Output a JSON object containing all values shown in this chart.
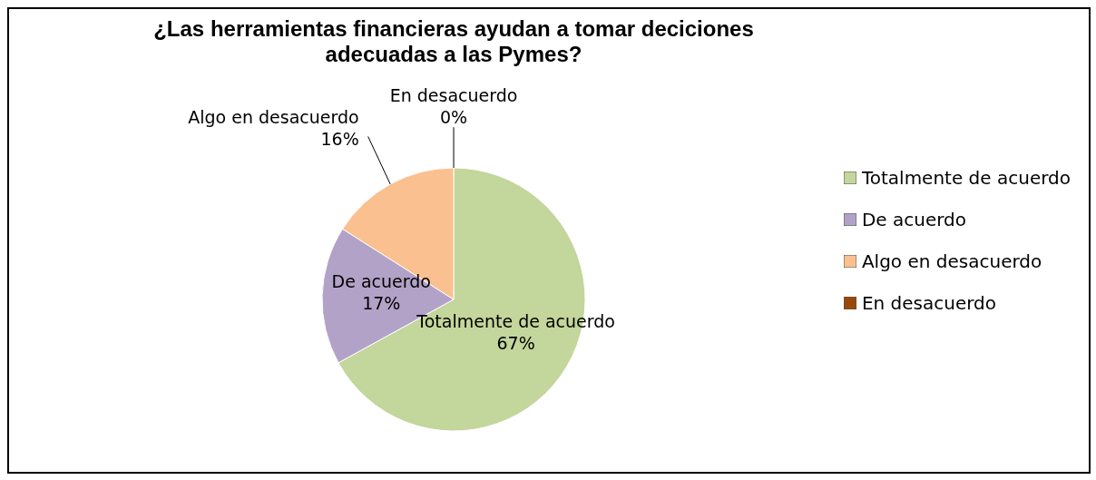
{
  "chart_data": {
    "type": "pie",
    "title": "¿Las herramientas financieras ayudan a tomar deciciones adecuadas a las Pymes?",
    "categories": [
      "Totalmente de acuerdo",
      "De acuerdo",
      "Algo en desacuerdo",
      "En desacuerdo"
    ],
    "values": [
      67,
      17,
      16,
      0
    ],
    "colors": [
      "#c3d69b",
      "#b3a2c7",
      "#fac090",
      "#984807"
    ],
    "value_labels": [
      "67%",
      "17%",
      "16%",
      "0%"
    ],
    "legend": "right"
  }
}
